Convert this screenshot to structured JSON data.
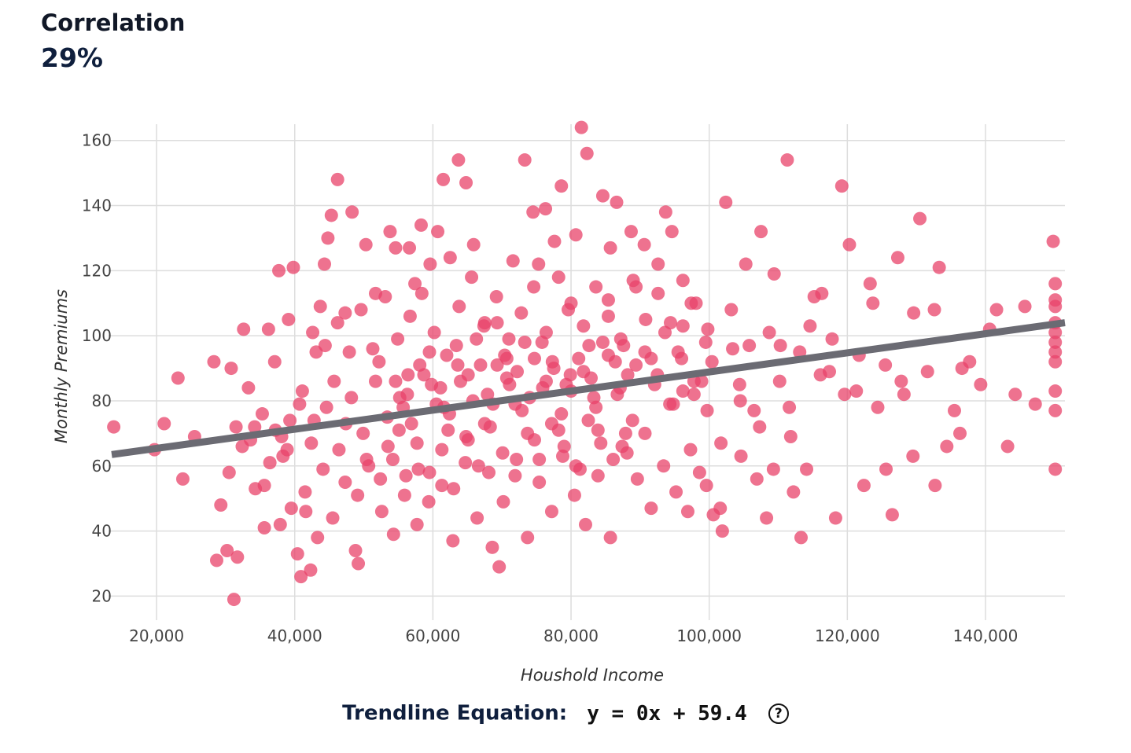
{
  "correlation": {
    "label": "Correlation",
    "value": "29%"
  },
  "trendline": {
    "label": "Trendline Equation:",
    "equation": "y = 0x + 59.4",
    "help_icon": "question-circle-icon"
  },
  "colors": {
    "points": "#e8436a",
    "trendline": "#6b6b73",
    "grid": "#dddddd"
  },
  "chart_data": {
    "type": "scatter",
    "xlabel": "Houshold Income",
    "ylabel": "Monthly Premiums",
    "xlim": [
      13500,
      151500
    ],
    "ylim": [
      16,
      165
    ],
    "xticks": [
      "20,000",
      "40,000",
      "60,000",
      "80,000",
      "100,000",
      "120,000",
      "140,000"
    ],
    "yticks": [
      "20",
      "40",
      "60",
      "80",
      "100",
      "120",
      "140",
      "160"
    ],
    "grid": true,
    "trendline": {
      "x": [
        13500,
        151500
      ],
      "y": [
        63.5,
        104
      ]
    },
    "points": [
      [
        13800,
        72
      ],
      [
        19700,
        65
      ],
      [
        21100,
        73
      ],
      [
        23100,
        87
      ],
      [
        23800,
        56
      ],
      [
        25500,
        69
      ],
      [
        28300,
        92
      ],
      [
        28700,
        31
      ],
      [
        29300,
        48
      ],
      [
        30200,
        34
      ],
      [
        30800,
        90
      ],
      [
        31200,
        19
      ],
      [
        31700,
        32
      ],
      [
        32600,
        102
      ],
      [
        33300,
        84
      ],
      [
        34300,
        53
      ],
      [
        35600,
        41
      ],
      [
        36200,
        102
      ],
      [
        37100,
        92
      ],
      [
        37700,
        120
      ],
      [
        38300,
        63
      ],
      [
        39100,
        105
      ],
      [
        39800,
        121
      ],
      [
        40400,
        33
      ],
      [
        40900,
        26
      ],
      [
        41600,
        46
      ],
      [
        42300,
        28
      ],
      [
        43100,
        95
      ],
      [
        43700,
        109
      ],
      [
        44300,
        122
      ],
      [
        44800,
        130
      ],
      [
        45300,
        137
      ],
      [
        46200,
        148
      ],
      [
        47300,
        107
      ],
      [
        48300,
        138
      ],
      [
        49200,
        30
      ],
      [
        50300,
        128
      ],
      [
        51700,
        113
      ],
      [
        53800,
        132
      ],
      [
        54600,
        127
      ],
      [
        55700,
        78
      ],
      [
        56600,
        127
      ],
      [
        57400,
        116
      ],
      [
        58300,
        134
      ],
      [
        59600,
        122
      ],
      [
        60700,
        132
      ],
      [
        61500,
        148
      ],
      [
        62500,
        124
      ],
      [
        63700,
        154
      ],
      [
        64800,
        147
      ],
      [
        65900,
        128
      ],
      [
        67500,
        104
      ],
      [
        68600,
        35
      ],
      [
        69600,
        29
      ],
      [
        70700,
        93
      ],
      [
        71600,
        123
      ],
      [
        73300,
        154
      ],
      [
        74500,
        138
      ],
      [
        75300,
        122
      ],
      [
        76300,
        139
      ],
      [
        77600,
        129
      ],
      [
        78600,
        146
      ],
      [
        79600,
        108
      ],
      [
        80700,
        131
      ],
      [
        81500,
        164
      ],
      [
        82300,
        156
      ],
      [
        83300,
        81
      ],
      [
        84600,
        143
      ],
      [
        85700,
        127
      ],
      [
        86600,
        141
      ],
      [
        87600,
        97
      ],
      [
        88700,
        132
      ],
      [
        89400,
        115
      ],
      [
        90600,
        128
      ],
      [
        91600,
        93
      ],
      [
        92600,
        122
      ],
      [
        93700,
        138
      ],
      [
        94600,
        132
      ],
      [
        95500,
        95
      ],
      [
        96200,
        103
      ],
      [
        96900,
        46
      ],
      [
        97800,
        86
      ],
      [
        98600,
        58
      ],
      [
        99500,
        98
      ],
      [
        100600,
        45
      ],
      [
        101600,
        47
      ],
      [
        102400,
        141
      ],
      [
        103400,
        96
      ],
      [
        104400,
        85
      ],
      [
        105300,
        122
      ],
      [
        106500,
        77
      ],
      [
        107500,
        132
      ],
      [
        108300,
        44
      ],
      [
        109400,
        119
      ],
      [
        110300,
        97
      ],
      [
        111300,
        154
      ],
      [
        112200,
        52
      ],
      [
        113300,
        38
      ],
      [
        114100,
        59
      ],
      [
        115200,
        112
      ],
      [
        116300,
        113
      ],
      [
        117400,
        89
      ],
      [
        118300,
        44
      ],
      [
        119200,
        146
      ],
      [
        120300,
        128
      ],
      [
        121300,
        83
      ],
      [
        122400,
        54
      ],
      [
        123300,
        116
      ],
      [
        124400,
        78
      ],
      [
        125600,
        59
      ],
      [
        126500,
        45
      ],
      [
        127300,
        124
      ],
      [
        128200,
        82
      ],
      [
        129500,
        63
      ],
      [
        130500,
        136
      ],
      [
        131600,
        89
      ],
      [
        132700,
        54
      ],
      [
        133300,
        121
      ],
      [
        134400,
        66
      ],
      [
        135500,
        77
      ],
      [
        136300,
        70
      ],
      [
        137700,
        92
      ],
      [
        139300,
        85
      ],
      [
        140600,
        102
      ],
      [
        141600,
        108
      ],
      [
        143200,
        66
      ],
      [
        144300,
        82
      ],
      [
        145700,
        109
      ],
      [
        147200,
        79
      ],
      [
        149800,
        129
      ],
      [
        150100,
        116
      ],
      [
        150100,
        111
      ],
      [
        150100,
        109
      ],
      [
        150100,
        104
      ],
      [
        150100,
        101
      ],
      [
        150100,
        98
      ],
      [
        150100,
        95
      ],
      [
        150100,
        92
      ],
      [
        150100,
        83
      ],
      [
        150100,
        77
      ],
      [
        150100,
        59
      ],
      [
        30500,
        58
      ],
      [
        32400,
        66
      ],
      [
        34200,
        72
      ],
      [
        36400,
        61
      ],
      [
        38100,
        69
      ],
      [
        39300,
        74
      ],
      [
        40700,
        79
      ],
      [
        42400,
        67
      ],
      [
        44100,
        59
      ],
      [
        45700,
        86
      ],
      [
        47400,
        73
      ],
      [
        49100,
        51
      ],
      [
        50400,
        62
      ],
      [
        52200,
        92
      ],
      [
        53500,
        66
      ],
      [
        55100,
        71
      ],
      [
        56400,
        88
      ],
      [
        57900,
        59
      ],
      [
        59500,
        95
      ],
      [
        61100,
        84
      ],
      [
        62400,
        76
      ],
      [
        63600,
        91
      ],
      [
        65100,
        68
      ],
      [
        66300,
        99
      ],
      [
        67900,
        82
      ],
      [
        69300,
        104
      ],
      [
        70700,
        87
      ],
      [
        71900,
        79
      ],
      [
        73300,
        98
      ],
      [
        74700,
        68
      ],
      [
        75900,
        84
      ],
      [
        77300,
        92
      ],
      [
        78600,
        76
      ],
      [
        79900,
        88
      ],
      [
        81300,
        59
      ],
      [
        82600,
        97
      ],
      [
        83900,
        71
      ],
      [
        85400,
        106
      ],
      [
        86700,
        82
      ],
      [
        88100,
        64
      ],
      [
        89400,
        91
      ],
      [
        90700,
        70
      ],
      [
        92100,
        85
      ],
      [
        93600,
        101
      ],
      [
        94800,
        79
      ],
      [
        96200,
        83
      ],
      [
        97400,
        110
      ],
      [
        98900,
        86
      ],
      [
        100400,
        92
      ],
      [
        101700,
        67
      ],
      [
        103200,
        108
      ],
      [
        104500,
        80
      ],
      [
        105800,
        97
      ],
      [
        107300,
        72
      ],
      [
        108700,
        101
      ],
      [
        110200,
        86
      ],
      [
        111600,
        78
      ],
      [
        113100,
        95
      ],
      [
        114600,
        103
      ],
      [
        116100,
        88
      ],
      [
        117800,
        99
      ],
      [
        119600,
        82
      ],
      [
        121700,
        94
      ],
      [
        123700,
        110
      ],
      [
        125500,
        91
      ],
      [
        127800,
        86
      ],
      [
        129600,
        107
      ],
      [
        132600,
        108
      ],
      [
        136600,
        90
      ],
      [
        35600,
        54
      ],
      [
        37900,
        42
      ],
      [
        39500,
        47
      ],
      [
        41500,
        52
      ],
      [
        43300,
        38
      ],
      [
        45500,
        44
      ],
      [
        47300,
        55
      ],
      [
        48800,
        34
      ],
      [
        50700,
        60
      ],
      [
        52600,
        46
      ],
      [
        54300,
        39
      ],
      [
        56100,
        57
      ],
      [
        57700,
        42
      ],
      [
        59400,
        49
      ],
      [
        61300,
        54
      ],
      [
        62900,
        37
      ],
      [
        64700,
        61
      ],
      [
        66400,
        44
      ],
      [
        68100,
        58
      ],
      [
        70200,
        49
      ],
      [
        72100,
        62
      ],
      [
        73700,
        38
      ],
      [
        75400,
        55
      ],
      [
        77200,
        46
      ],
      [
        78800,
        63
      ],
      [
        80500,
        51
      ],
      [
        82100,
        42
      ],
      [
        83900,
        57
      ],
      [
        85700,
        38
      ],
      [
        87400,
        66
      ],
      [
        89600,
        56
      ],
      [
        91600,
        47
      ],
      [
        93400,
        60
      ],
      [
        95200,
        52
      ],
      [
        97300,
        65
      ],
      [
        99600,
        54
      ],
      [
        101900,
        40
      ],
      [
        104600,
        63
      ],
      [
        106900,
        56
      ],
      [
        109300,
        59
      ],
      [
        111800,
        69
      ],
      [
        42600,
        101
      ],
      [
        44400,
        97
      ],
      [
        46200,
        104
      ],
      [
        47900,
        95
      ],
      [
        49600,
        108
      ],
      [
        51300,
        96
      ],
      [
        53100,
        112
      ],
      [
        54900,
        99
      ],
      [
        56700,
        106
      ],
      [
        58400,
        113
      ],
      [
        60200,
        101
      ],
      [
        62000,
        94
      ],
      [
        63800,
        109
      ],
      [
        65600,
        118
      ],
      [
        67400,
        103
      ],
      [
        69200,
        112
      ],
      [
        71000,
        99
      ],
      [
        72800,
        107
      ],
      [
        74600,
        115
      ],
      [
        76400,
        101
      ],
      [
        78200,
        118
      ],
      [
        80000,
        110
      ],
      [
        81800,
        103
      ],
      [
        83600,
        115
      ],
      [
        85400,
        111
      ],
      [
        87200,
        99
      ],
      [
        89000,
        117
      ],
      [
        90800,
        105
      ],
      [
        92600,
        113
      ],
      [
        94400,
        104
      ],
      [
        96200,
        117
      ],
      [
        98100,
        110
      ],
      [
        99800,
        102
      ],
      [
        31500,
        72
      ],
      [
        33600,
        68
      ],
      [
        35300,
        76
      ],
      [
        37200,
        71
      ],
      [
        38900,
        65
      ],
      [
        41100,
        83
      ],
      [
        42800,
        74
      ],
      [
        44600,
        78
      ],
      [
        46400,
        65
      ],
      [
        48200,
        81
      ],
      [
        49900,
        70
      ],
      [
        51700,
        86
      ],
      [
        53400,
        75
      ],
      [
        55200,
        81
      ],
      [
        56900,
        73
      ],
      [
        58700,
        88
      ],
      [
        60500,
        79
      ],
      [
        62200,
        71
      ],
      [
        64000,
        86
      ],
      [
        65800,
        80
      ],
      [
        67500,
        73
      ],
      [
        69300,
        91
      ],
      [
        71100,
        85
      ],
      [
        72900,
        77
      ],
      [
        74700,
        93
      ],
      [
        76400,
        86
      ],
      [
        78200,
        71
      ],
      [
        80000,
        83
      ],
      [
        81800,
        89
      ],
      [
        83600,
        78
      ],
      [
        85400,
        94
      ],
      [
        87100,
        84
      ],
      [
        88900,
        74
      ],
      [
        90700,
        95
      ],
      [
        92500,
        88
      ],
      [
        94300,
        79
      ],
      [
        96000,
        93
      ],
      [
        97800,
        82
      ],
      [
        99700,
        77
      ],
      [
        54600,
        86
      ],
      [
        56300,
        82
      ],
      [
        58100,
        91
      ],
      [
        59800,
        85
      ],
      [
        61600,
        78
      ],
      [
        63400,
        97
      ],
      [
        65100,
        88
      ],
      [
        66900,
        91
      ],
      [
        68700,
        79
      ],
      [
        70400,
        94
      ],
      [
        72200,
        89
      ],
      [
        74000,
        81
      ],
      [
        75800,
        98
      ],
      [
        77500,
        90
      ],
      [
        79300,
        85
      ],
      [
        81100,
        93
      ],
      [
        82900,
        87
      ],
      [
        84600,
        98
      ],
      [
        86400,
        92
      ],
      [
        88200,
        88
      ],
      [
        52400,
        56
      ],
      [
        54200,
        62
      ],
      [
        55900,
        51
      ],
      [
        57700,
        67
      ],
      [
        59500,
        58
      ],
      [
        61300,
        65
      ],
      [
        63000,
        53
      ],
      [
        64800,
        69
      ],
      [
        66600,
        60
      ],
      [
        68300,
        72
      ],
      [
        70100,
        64
      ],
      [
        71900,
        57
      ],
      [
        73700,
        70
      ],
      [
        75400,
        62
      ],
      [
        77200,
        73
      ],
      [
        79000,
        66
      ],
      [
        80700,
        60
      ],
      [
        82500,
        74
      ],
      [
        84300,
        67
      ],
      [
        86100,
        62
      ],
      [
        87900,
        70
      ]
    ]
  }
}
